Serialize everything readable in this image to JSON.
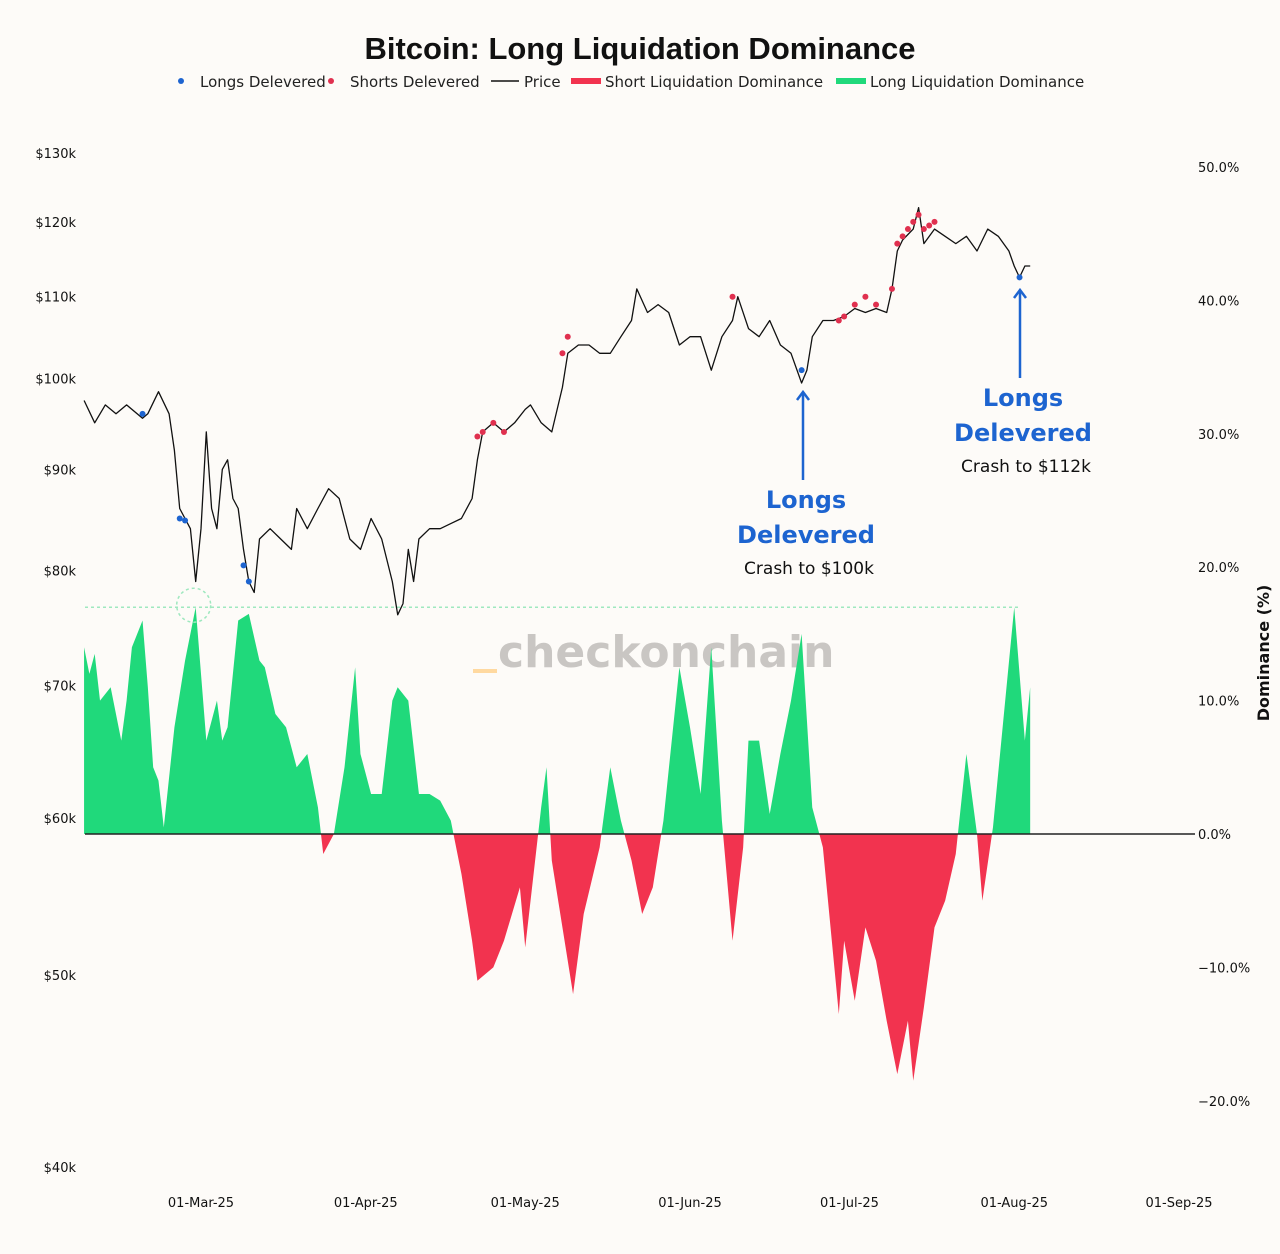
{
  "chart_data": {
    "type": "area+line",
    "title": "Bitcoin: Long Liquidation Dominance",
    "legend": {
      "placement": "top-center",
      "entries": [
        {
          "label": "Longs Delevered",
          "kind": "dot",
          "color": "#1d64d0"
        },
        {
          "label": "Shorts Delevered",
          "kind": "dot",
          "color": "#e0304f"
        },
        {
          "label": "Price",
          "kind": "line",
          "color": "#111111"
        },
        {
          "label": "Short Liquidation Dominance",
          "kind": "bar",
          "color": "#f2334f"
        },
        {
          "label": "Long Liquidation Dominance",
          "kind": "bar",
          "color": "#20d97b"
        }
      ]
    },
    "x_axis": {
      "ticks": [
        {
          "date": "2025-03-01",
          "label": "01-Mar-25"
        },
        {
          "date": "2025-04-01",
          "label": "01-Apr-25"
        },
        {
          "date": "2025-05-01",
          "label": "01-May-25"
        },
        {
          "date": "2025-06-01",
          "label": "01-Jun-25"
        },
        {
          "date": "2025-07-01",
          "label": "01-Jul-25"
        },
        {
          "date": "2025-08-01",
          "label": "01-Aug-25"
        },
        {
          "date": "2025-09-01",
          "label": "01-Sep-25"
        }
      ]
    },
    "y_left": {
      "scale": "log",
      "range": [
        40000,
        130000
      ],
      "ticks": [
        {
          "v": 130000,
          "label": "$130k"
        },
        {
          "v": 120000,
          "label": "$120k"
        },
        {
          "v": 110000,
          "label": "$110k"
        },
        {
          "v": 100000,
          "label": "$100k"
        },
        {
          "v": 90000,
          "label": "$90k"
        },
        {
          "v": 80000,
          "label": "$80k"
        },
        {
          "v": 70000,
          "label": "$70k"
        },
        {
          "v": 60000,
          "label": "$60k"
        },
        {
          "v": 50000,
          "label": "$50k"
        },
        {
          "v": 40000,
          "label": "$40k"
        }
      ]
    },
    "y_right": {
      "label": "Dominance (%)",
      "range": [
        -25,
        50
      ],
      "ticks": [
        {
          "v": 50,
          "label": "50.0%"
        },
        {
          "v": 40,
          "label": "40.0%"
        },
        {
          "v": 30,
          "label": "30.0%"
        },
        {
          "v": 20,
          "label": "20.0%"
        },
        {
          "v": 10,
          "label": "10.0%"
        },
        {
          "v": 0,
          "label": "0.0%"
        },
        {
          "v": -10,
          "label": "−10.0%"
        },
        {
          "v": -20,
          "label": "−20.0%"
        }
      ]
    },
    "price": [
      [
        "2025-02-07",
        97500
      ],
      [
        "2025-02-09",
        95000
      ],
      [
        "2025-02-11",
        97000
      ],
      [
        "2025-02-13",
        96000
      ],
      [
        "2025-02-15",
        97000
      ],
      [
        "2025-02-18",
        95500
      ],
      [
        "2025-02-19",
        96000
      ],
      [
        "2025-02-21",
        98500
      ],
      [
        "2025-02-23",
        96000
      ],
      [
        "2025-02-24",
        92000
      ],
      [
        "2025-02-25",
        86000
      ],
      [
        "2025-02-27",
        84000
      ],
      [
        "2025-02-28",
        79000
      ],
      [
        "2025-03-01",
        84000
      ],
      [
        "2025-03-02",
        94000
      ],
      [
        "2025-03-03",
        86000
      ],
      [
        "2025-03-04",
        84000
      ],
      [
        "2025-03-05",
        90000
      ],
      [
        "2025-03-06",
        91000
      ],
      [
        "2025-03-07",
        87000
      ],
      [
        "2025-03-08",
        86000
      ],
      [
        "2025-03-09",
        82000
      ],
      [
        "2025-03-10",
        79000
      ],
      [
        "2025-03-11",
        78000
      ],
      [
        "2025-03-12",
        83000
      ],
      [
        "2025-03-14",
        84000
      ],
      [
        "2025-03-16",
        83000
      ],
      [
        "2025-03-18",
        82000
      ],
      [
        "2025-03-19",
        86000
      ],
      [
        "2025-03-21",
        84000
      ],
      [
        "2025-03-23",
        86000
      ],
      [
        "2025-03-25",
        88000
      ],
      [
        "2025-03-27",
        87000
      ],
      [
        "2025-03-29",
        83000
      ],
      [
        "2025-03-31",
        82000
      ],
      [
        "2025-04-02",
        85000
      ],
      [
        "2025-04-04",
        83000
      ],
      [
        "2025-04-06",
        79000
      ],
      [
        "2025-04-07",
        76000
      ],
      [
        "2025-04-08",
        77000
      ],
      [
        "2025-04-09",
        82000
      ],
      [
        "2025-04-10",
        79000
      ],
      [
        "2025-04-11",
        83000
      ],
      [
        "2025-04-13",
        84000
      ],
      [
        "2025-04-15",
        84000
      ],
      [
        "2025-04-17",
        84500
      ],
      [
        "2025-04-19",
        85000
      ],
      [
        "2025-04-21",
        87000
      ],
      [
        "2025-04-22",
        91000
      ],
      [
        "2025-04-23",
        94000
      ],
      [
        "2025-04-25",
        95000
      ],
      [
        "2025-04-27",
        94000
      ],
      [
        "2025-04-29",
        95000
      ],
      [
        "2025-05-01",
        96500
      ],
      [
        "2025-05-02",
        97000
      ],
      [
        "2025-05-04",
        95000
      ],
      [
        "2025-05-06",
        94000
      ],
      [
        "2025-05-08",
        99000
      ],
      [
        "2025-05-09",
        103000
      ],
      [
        "2025-05-11",
        104000
      ],
      [
        "2025-05-13",
        104000
      ],
      [
        "2025-05-15",
        103000
      ],
      [
        "2025-05-17",
        103000
      ],
      [
        "2025-05-19",
        105000
      ],
      [
        "2025-05-21",
        107000
      ],
      [
        "2025-05-22",
        111000
      ],
      [
        "2025-05-24",
        108000
      ],
      [
        "2025-05-26",
        109000
      ],
      [
        "2025-05-28",
        108000
      ],
      [
        "2025-05-30",
        104000
      ],
      [
        "2025-06-01",
        105000
      ],
      [
        "2025-06-03",
        105000
      ],
      [
        "2025-06-05",
        101000
      ],
      [
        "2025-06-07",
        105000
      ],
      [
        "2025-06-09",
        107000
      ],
      [
        "2025-06-10",
        110000
      ],
      [
        "2025-06-12",
        106000
      ],
      [
        "2025-06-14",
        105000
      ],
      [
        "2025-06-16",
        107000
      ],
      [
        "2025-06-18",
        104000
      ],
      [
        "2025-06-20",
        103000
      ],
      [
        "2025-06-22",
        99500
      ],
      [
        "2025-06-23",
        101000
      ],
      [
        "2025-06-24",
        105000
      ],
      [
        "2025-06-26",
        107000
      ],
      [
        "2025-06-28",
        107000
      ],
      [
        "2025-06-30",
        107500
      ],
      [
        "2025-07-02",
        108500
      ],
      [
        "2025-07-04",
        108000
      ],
      [
        "2025-07-06",
        108500
      ],
      [
        "2025-07-08",
        108000
      ],
      [
        "2025-07-09",
        111000
      ],
      [
        "2025-07-10",
        116000
      ],
      [
        "2025-07-11",
        117500
      ],
      [
        "2025-07-13",
        119000
      ],
      [
        "2025-07-14",
        122000
      ],
      [
        "2025-07-15",
        117000
      ],
      [
        "2025-07-17",
        119000
      ],
      [
        "2025-07-19",
        118000
      ],
      [
        "2025-07-21",
        117000
      ],
      [
        "2025-07-23",
        118000
      ],
      [
        "2025-07-25",
        116000
      ],
      [
        "2025-07-27",
        119000
      ],
      [
        "2025-07-29",
        118000
      ],
      [
        "2025-07-31",
        116000
      ],
      [
        "2025-08-01",
        114000
      ],
      [
        "2025-08-02",
        112500
      ],
      [
        "2025-08-03",
        114000
      ],
      [
        "2025-08-04",
        114000
      ]
    ],
    "dominance": [
      [
        "2025-02-07",
        14
      ],
      [
        "2025-02-08",
        12
      ],
      [
        "2025-02-09",
        13.5
      ],
      [
        "2025-02-10",
        10
      ],
      [
        "2025-02-12",
        11
      ],
      [
        "2025-02-14",
        7
      ],
      [
        "2025-02-15",
        10
      ],
      [
        "2025-02-16",
        14
      ],
      [
        "2025-02-18",
        16
      ],
      [
        "2025-02-19",
        11
      ],
      [
        "2025-02-20",
        5
      ],
      [
        "2025-02-21",
        4
      ],
      [
        "2025-02-22",
        0.5
      ],
      [
        "2025-02-24",
        8
      ],
      [
        "2025-02-26",
        13
      ],
      [
        "2025-02-28",
        17
      ],
      [
        "2025-03-02",
        7
      ],
      [
        "2025-03-04",
        10
      ],
      [
        "2025-03-05",
        7
      ],
      [
        "2025-03-06",
        8
      ],
      [
        "2025-03-08",
        16
      ],
      [
        "2025-03-10",
        16.5
      ],
      [
        "2025-03-12",
        13
      ],
      [
        "2025-03-13",
        12.5
      ],
      [
        "2025-03-15",
        9
      ],
      [
        "2025-03-17",
        8
      ],
      [
        "2025-03-19",
        5
      ],
      [
        "2025-03-21",
        6
      ],
      [
        "2025-03-23",
        2
      ],
      [
        "2025-03-24",
        -1.5
      ],
      [
        "2025-03-26",
        0
      ],
      [
        "2025-03-28",
        5
      ],
      [
        "2025-03-30",
        12.5
      ],
      [
        "2025-03-31",
        6
      ],
      [
        "2025-04-02",
        3
      ],
      [
        "2025-04-04",
        3
      ],
      [
        "2025-04-06",
        10
      ],
      [
        "2025-04-07",
        11
      ],
      [
        "2025-04-09",
        10
      ],
      [
        "2025-04-11",
        3
      ],
      [
        "2025-04-13",
        3
      ],
      [
        "2025-04-15",
        2.5
      ],
      [
        "2025-04-17",
        1
      ],
      [
        "2025-04-19",
        -3
      ],
      [
        "2025-04-21",
        -8
      ],
      [
        "2025-04-22",
        -11
      ],
      [
        "2025-04-25",
        -10
      ],
      [
        "2025-04-27",
        -8
      ],
      [
        "2025-04-30",
        -4
      ],
      [
        "2025-05-01",
        -8.5
      ],
      [
        "2025-05-04",
        2
      ],
      [
        "2025-05-05",
        5
      ],
      [
        "2025-05-06",
        -2
      ],
      [
        "2025-05-10",
        -12
      ],
      [
        "2025-05-12",
        -6
      ],
      [
        "2025-05-15",
        -1
      ],
      [
        "2025-05-17",
        5
      ],
      [
        "2025-05-19",
        1
      ],
      [
        "2025-05-21",
        -2
      ],
      [
        "2025-05-23",
        -6
      ],
      [
        "2025-05-25",
        -4
      ],
      [
        "2025-05-27",
        1
      ],
      [
        "2025-05-30",
        12.5
      ],
      [
        "2025-06-01",
        8
      ],
      [
        "2025-06-03",
        3
      ],
      [
        "2025-06-05",
        14
      ],
      [
        "2025-06-07",
        1
      ],
      [
        "2025-06-09",
        -8
      ],
      [
        "2025-06-11",
        -1
      ],
      [
        "2025-06-12",
        7
      ],
      [
        "2025-06-14",
        7
      ],
      [
        "2025-06-16",
        1.5
      ],
      [
        "2025-06-18",
        6
      ],
      [
        "2025-06-20",
        10
      ],
      [
        "2025-06-22",
        15
      ],
      [
        "2025-06-24",
        2
      ],
      [
        "2025-06-26",
        -1
      ],
      [
        "2025-06-29",
        -13.5
      ],
      [
        "2025-06-30",
        -8
      ],
      [
        "2025-07-02",
        -12.5
      ],
      [
        "2025-07-04",
        -7
      ],
      [
        "2025-07-06",
        -9.5
      ],
      [
        "2025-07-08",
        -14
      ],
      [
        "2025-07-10",
        -18
      ],
      [
        "2025-07-12",
        -14
      ],
      [
        "2025-07-13",
        -18.5
      ],
      [
        "2025-07-15",
        -13
      ],
      [
        "2025-07-17",
        -7
      ],
      [
        "2025-07-19",
        -5
      ],
      [
        "2025-07-21",
        -1.5
      ],
      [
        "2025-07-23",
        6
      ],
      [
        "2025-07-25",
        0
      ],
      [
        "2025-07-26",
        -5
      ],
      [
        "2025-07-28",
        0.5
      ],
      [
        "2025-08-01",
        17
      ],
      [
        "2025-08-03",
        7
      ],
      [
        "2025-08-04",
        11
      ]
    ],
    "longs_delevered": [
      [
        "2025-02-18",
        96000
      ],
      [
        "2025-02-25",
        85000
      ],
      [
        "2025-02-26",
        84800
      ],
      [
        "2025-03-09",
        80500
      ],
      [
        "2025-03-10",
        79000
      ],
      [
        "2025-06-22",
        101000
      ],
      [
        "2025-08-02",
        112500
      ]
    ],
    "shorts_delevered": [
      [
        "2025-04-22",
        93500
      ],
      [
        "2025-04-23",
        94000
      ],
      [
        "2025-04-25",
        95000
      ],
      [
        "2025-04-27",
        94000
      ],
      [
        "2025-05-08",
        103000
      ],
      [
        "2025-05-09",
        105000
      ],
      [
        "2025-06-09",
        110000
      ],
      [
        "2025-06-29",
        107000
      ],
      [
        "2025-06-30",
        107500
      ],
      [
        "2025-07-02",
        109000
      ],
      [
        "2025-07-04",
        110000
      ],
      [
        "2025-07-06",
        109000
      ],
      [
        "2025-07-09",
        111000
      ],
      [
        "2025-07-10",
        117000
      ],
      [
        "2025-07-11",
        118000
      ],
      [
        "2025-07-12",
        119000
      ],
      [
        "2025-07-13",
        120000
      ],
      [
        "2025-07-14",
        121000
      ],
      [
        "2025-07-15",
        119000
      ],
      [
        "2025-07-16",
        119500
      ],
      [
        "2025-07-17",
        120000
      ]
    ],
    "reference_line_dominance": 17,
    "annotations": [
      {
        "date": "2025-06-22",
        "line1": "Longs",
        "line2": "Delevered",
        "line3": "Crash to $100k"
      },
      {
        "date": "2025-08-02",
        "line1": "Longs",
        "line2": "Delevered",
        "line3": "Crash to $112k"
      }
    ],
    "watermark": "checkonchain"
  }
}
